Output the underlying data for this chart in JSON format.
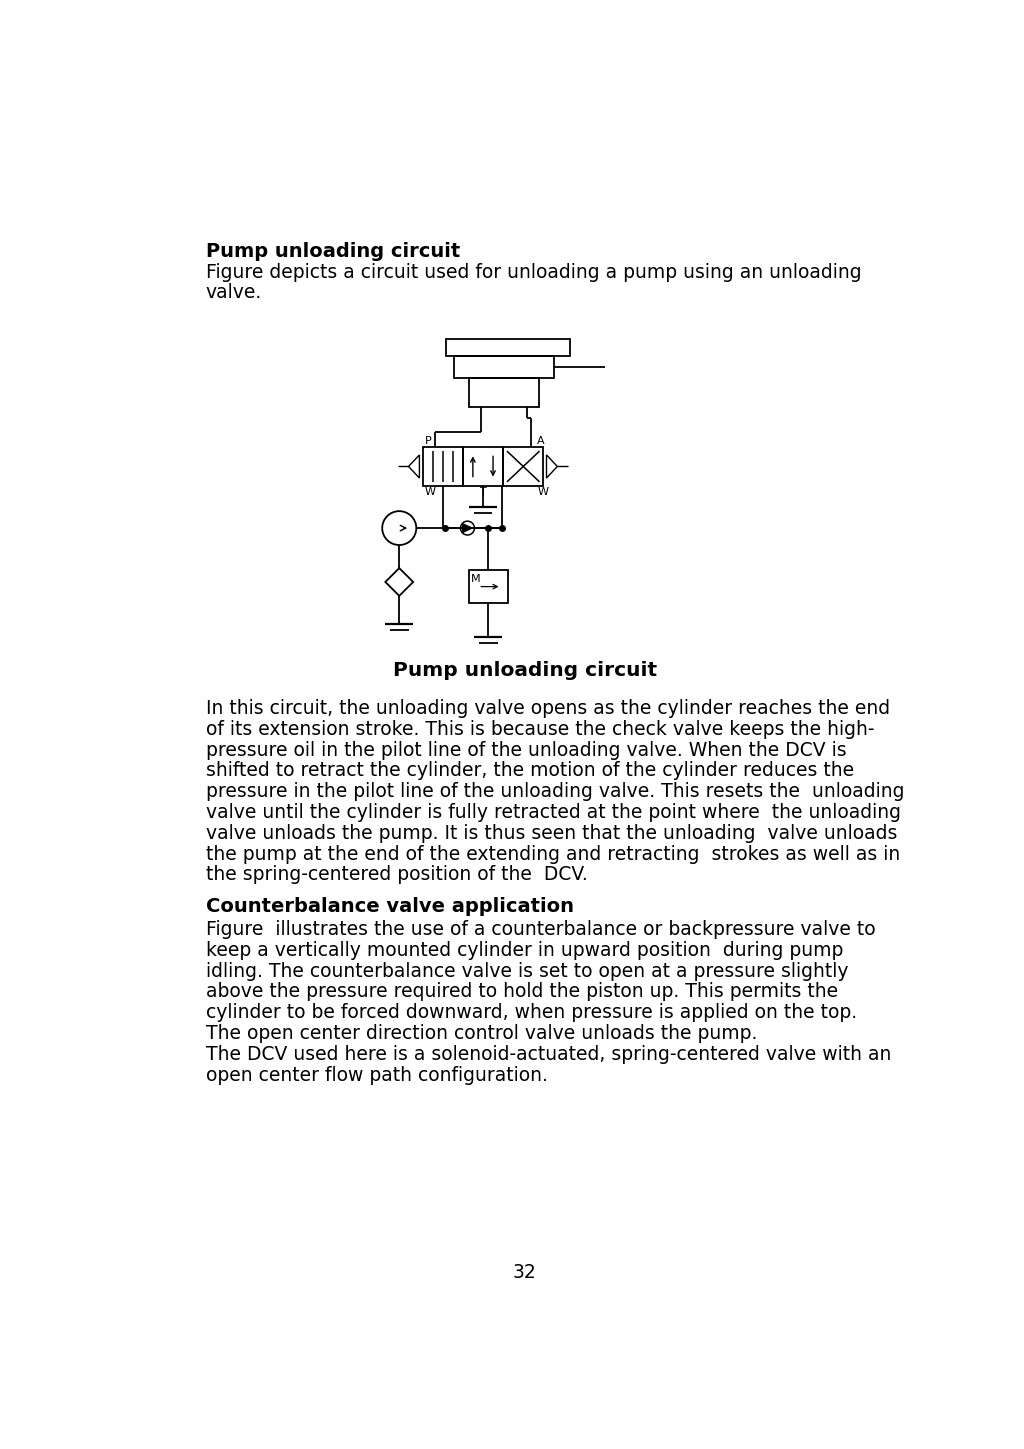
{
  "title_bold": "Pump unloading circuit",
  "para1_line1": "Figure depicts a circuit used for unloading a pump using an unloading",
  "para1_line2": "valve.",
  "figure_caption": "Pump unloading circuit",
  "para2_lines": [
    "In this circuit, the unloading valve opens as the cylinder reaches the end",
    "of its extension stroke. This is because the check valve keeps the high-",
    "pressure oil in the pilot line of the unloading valve. When the DCV is",
    "shifted to retract the cylinder, the motion of the cylinder reduces the",
    "pressure in the pilot line of the unloading valve. This resets the  unloading",
    "valve until the cylinder is fully retracted at the point where  the unloading",
    "valve unloads the pump. It is thus seen that the unloading  valve unloads",
    "the pump at the end of the extending and retracting  strokes as well as in",
    "the spring-centered position of the  DCV."
  ],
  "title_bold2": "Counterbalance valve application",
  "para3_lines": [
    "Figure  illustrates the use of a counterbalance or backpressure valve to",
    "keep a vertically mounted cylinder in upward position  during pump",
    "idling. The counterbalance valve is set to open at a pressure slightly",
    "above the pressure required to hold the piston up. This permits the",
    "cylinder to be forced downward, when pressure is applied on the top.",
    "The open center direction control valve unloads the pump.",
    "The DCV used here is a solenoid-actuated, spring-centered valve with an",
    "open center flow path configuration."
  ],
  "page_number": "32",
  "bg_color": "#ffffff",
  "text_color": "#000000",
  "lw": 1.3,
  "font_body": 13.5,
  "font_title": 14.0,
  "font_caption": 13.5
}
